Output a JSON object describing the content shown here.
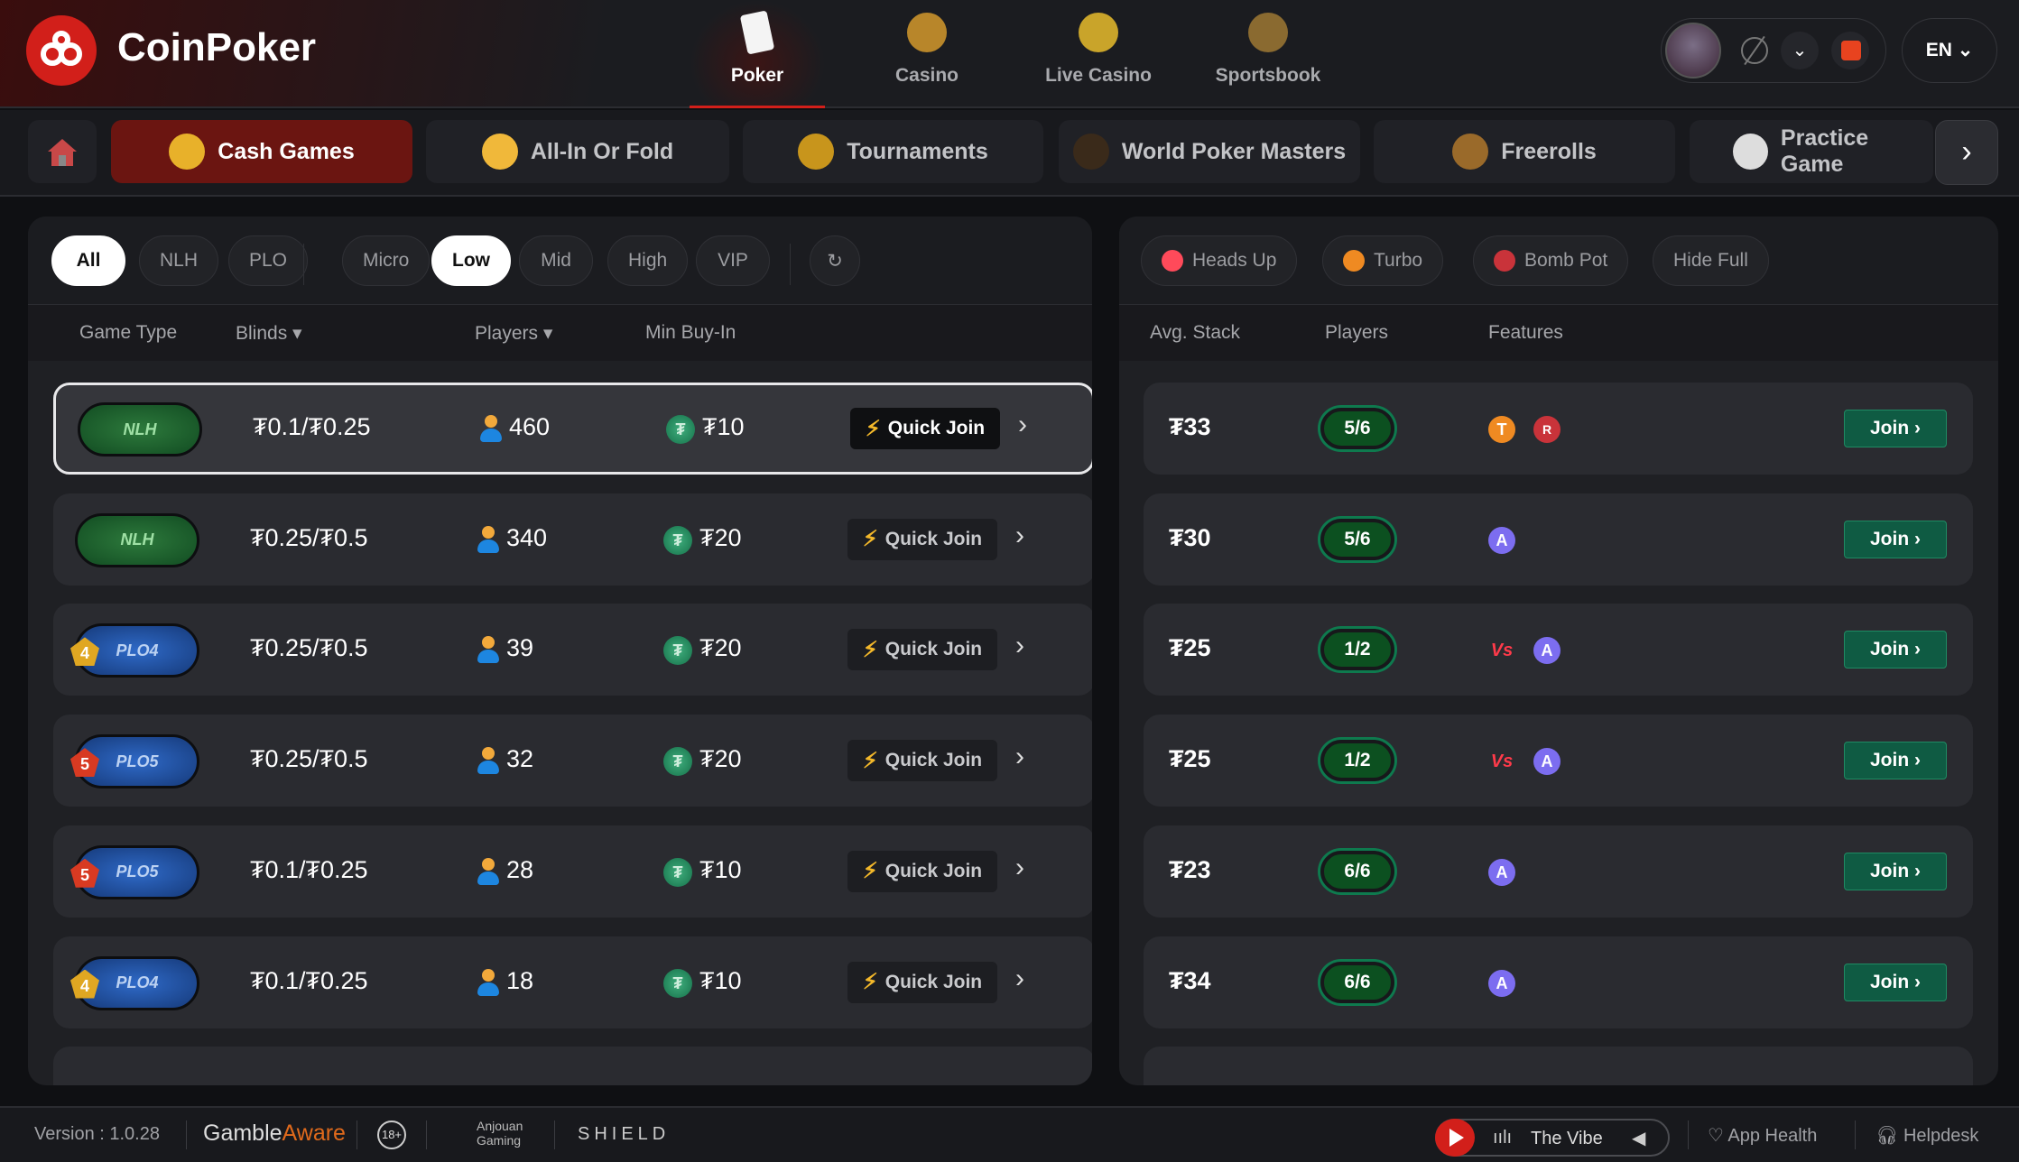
{
  "brand": {
    "name": "CoinPoker",
    "accent": "#d21f1a"
  },
  "main_nav": [
    {
      "label": "Poker",
      "icon": "poker-cards-icon",
      "active": true
    },
    {
      "label": "Casino",
      "icon": "roulette-icon"
    },
    {
      "label": "Live Casino",
      "icon": "coin-dice-icon"
    },
    {
      "label": "Sportsbook",
      "icon": "sports-balls-icon"
    }
  ],
  "user": {
    "language": "EN"
  },
  "sub_nav": [
    {
      "label": "Cash Games",
      "icon": "coins-icon",
      "active": true
    },
    {
      "label": "All-In Or Fold",
      "icon": "aof-icon"
    },
    {
      "label": "Tournaments",
      "icon": "trophy-icon"
    },
    {
      "label": "World Poker Masters",
      "icon": "wpm-chip-icon"
    },
    {
      "label": "Freerolls",
      "icon": "money-bag-icon"
    },
    {
      "label": "Practice Game",
      "icon": "practice-cards-icon"
    }
  ],
  "filters": {
    "game": [
      "All",
      "NLH",
      "PLO"
    ],
    "stakes": [
      "Micro",
      "Low",
      "Mid",
      "High",
      "VIP"
    ],
    "active": [
      "All",
      "Low"
    ],
    "features": [
      {
        "label": "Heads Up",
        "icon": "vs-icon"
      },
      {
        "label": "Turbo",
        "icon": "turbo-icon"
      },
      {
        "label": "Bomb Pot",
        "icon": "bomb-icon"
      },
      {
        "label": "Hide Full"
      }
    ]
  },
  "columns_left": {
    "game_type": "Game Type",
    "blinds": "Blinds ▾",
    "players": "Players ▾",
    "min_buyin": "Min Buy-In"
  },
  "columns_right": {
    "avg_stack": "Avg. Stack",
    "players": "Players",
    "features": "Features"
  },
  "quick_join_label": "Quick Join",
  "join_label": "Join",
  "tables": [
    {
      "type": "NLH",
      "variant": "",
      "blinds": "₮0.1/₮0.25",
      "players": "460",
      "buyin": "₮10",
      "avg_stack": "₮33",
      "seats": "5/6",
      "features": [
        "turbo",
        "bomb"
      ],
      "selected": true
    },
    {
      "type": "NLH",
      "variant": "",
      "blinds": "₮0.25/₮0.5",
      "players": "340",
      "buyin": "₮20",
      "avg_stack": "₮30",
      "seats": "5/6",
      "features": [
        "auto"
      ]
    },
    {
      "type": "PLO4",
      "variant": "4",
      "blinds": "₮0.25/₮0.5",
      "players": "39",
      "buyin": "₮20",
      "avg_stack": "₮25",
      "seats": "1/2",
      "features": [
        "hu",
        "auto"
      ]
    },
    {
      "type": "PLO5",
      "variant": "5",
      "blinds": "₮0.25/₮0.5",
      "players": "32",
      "buyin": "₮20",
      "avg_stack": "₮25",
      "seats": "1/2",
      "features": [
        "hu",
        "auto"
      ]
    },
    {
      "type": "PLO5",
      "variant": "5",
      "blinds": "₮0.1/₮0.25",
      "players": "28",
      "buyin": "₮10",
      "avg_stack": "₮23",
      "seats": "6/6",
      "features": [
        "auto"
      ]
    },
    {
      "type": "PLO4",
      "variant": "4",
      "blinds": "₮0.1/₮0.25",
      "players": "18",
      "buyin": "₮10",
      "avg_stack": "₮34",
      "seats": "6/6",
      "features": [
        "auto"
      ]
    }
  ],
  "feature_glyphs": {
    "turbo": "T",
    "bomb": "R",
    "auto": "A",
    "hu": "Vs"
  },
  "footer": {
    "version": "Version : 1.0.28",
    "gamble": "Gamble",
    "aware": "Aware",
    "age": "18+",
    "anjouan": "Anjouan Gaming",
    "shield": "SHIELD",
    "radio": "The Vibe",
    "app_health": "App Health",
    "helpdesk": "Helpdesk"
  }
}
